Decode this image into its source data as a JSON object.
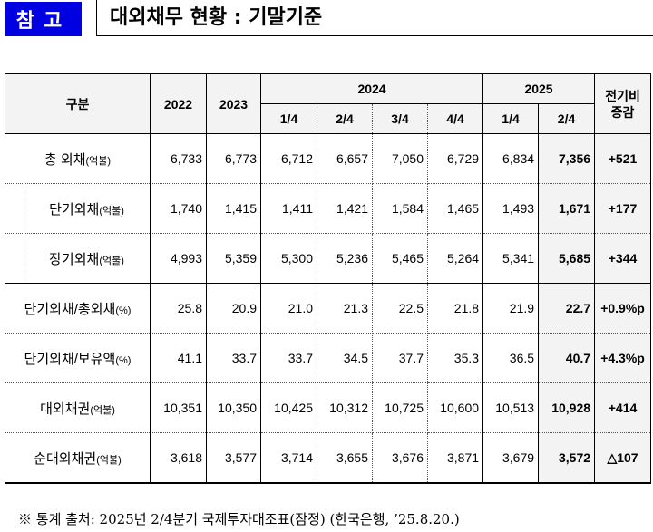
{
  "header": {
    "badge": "참고",
    "title": "대외채무 현황 : 기말기준"
  },
  "table": {
    "col_label": "구분",
    "years": [
      "2022",
      "2023",
      "2024",
      "2025"
    ],
    "quarters_2024": [
      "1/4",
      "2/4",
      "3/4",
      "4/4"
    ],
    "quarters_2025": [
      "1/4",
      "2/4"
    ],
    "change_header": "전기비\n증감",
    "rows": [
      {
        "label": "총 외채",
        "unit": "(억불)",
        "values": [
          "6,733",
          "6,773",
          "6,712",
          "6,657",
          "7,050",
          "6,729",
          "6,834",
          "7,356"
        ],
        "change": "+521"
      },
      {
        "label": "단기외채",
        "unit": "(억불)",
        "values": [
          "1,740",
          "1,415",
          "1,411",
          "1,421",
          "1,584",
          "1,465",
          "1,493",
          "1,671"
        ],
        "change": "+177"
      },
      {
        "label": "장기외채",
        "unit": "(억불)",
        "values": [
          "4,993",
          "5,359",
          "5,300",
          "5,236",
          "5,465",
          "5,264",
          "5,341",
          "5,685"
        ],
        "change": "+344"
      },
      {
        "label": "단기외채/총외채",
        "unit": "(%)",
        "values": [
          "25.8",
          "20.9",
          "21.0",
          "21.3",
          "22.5",
          "21.8",
          "21.9",
          "22.7"
        ],
        "change": "+0.9%p"
      },
      {
        "label": "단기외채/보유액",
        "unit": "(%)",
        "values": [
          "41.1",
          "33.7",
          "33.7",
          "34.5",
          "37.7",
          "35.3",
          "36.5",
          "40.7"
        ],
        "change": "+4.3%p"
      },
      {
        "label": "대외채권",
        "unit": "(억불)",
        "values": [
          "10,351",
          "10,350",
          "10,425",
          "10,312",
          "10,725",
          "10,600",
          "10,513",
          "10,928"
        ],
        "change": "+414"
      },
      {
        "label": "순대외채권",
        "unit": "(억불)",
        "values": [
          "3,618",
          "3,577",
          "3,714",
          "3,655",
          "3,676",
          "3,871",
          "3,679",
          "3,572"
        ],
        "change": "△107"
      }
    ]
  },
  "footnote": "※ 통계 출처: 2025년 2/4분기 국제투자대조표(잠정) (한국은행, ’25.8.20.)"
}
